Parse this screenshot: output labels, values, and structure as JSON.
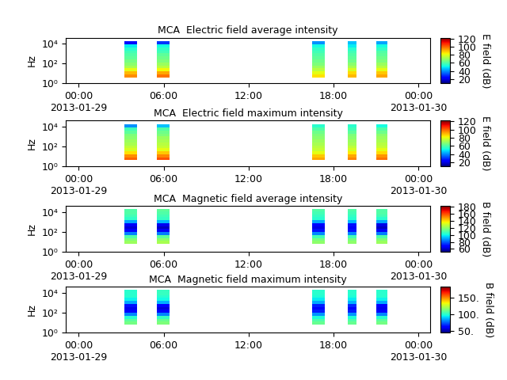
{
  "chart_data": [
    {
      "type": "heatmap",
      "title": "MCA  Electric field average intensity",
      "y_label": "Hz",
      "log": "y",
      "xlim": [
        -0.9,
        24.8
      ],
      "xticks": [
        {
          "value": 0,
          "label": "00:00\n2013-01-29"
        },
        {
          "value": 6,
          "label": "06:00"
        },
        {
          "value": 12,
          "label": "12:00"
        },
        {
          "value": 18,
          "label": "18:00"
        },
        {
          "value": 24,
          "label": "00:00\n2013-01-30"
        }
      ],
      "ylim": [
        1,
        40000
      ],
      "yticks": [
        {
          "value": 1,
          "label": "10⁰"
        },
        {
          "value": 100,
          "label": "10²"
        },
        {
          "value": 10000,
          "label": "10⁴"
        }
      ],
      "freq_edges": [
        4,
        8,
        16,
        32,
        64,
        128,
        256,
        512,
        1024,
        2048,
        4096,
        8192,
        16384
      ],
      "segments": [
        {
          "start": 3.2,
          "end": 4.1,
          "cells": [
            95,
            90,
            80,
            72,
            68,
            65,
            62,
            60,
            58,
            55,
            50,
            25
          ]
        },
        {
          "start": 5.5,
          "end": 6.4,
          "cells": [
            98,
            92,
            82,
            74,
            70,
            66,
            64,
            62,
            58,
            56,
            52,
            30
          ]
        },
        {
          "start": 16.5,
          "end": 17.4,
          "cells": [
            85,
            80,
            74,
            70,
            66,
            64,
            62,
            60,
            58,
            56,
            52,
            40
          ]
        },
        {
          "start": 19.0,
          "end": 19.6,
          "cells": [
            90,
            86,
            78,
            72,
            68,
            64,
            62,
            60,
            58,
            55,
            50,
            45
          ]
        },
        {
          "start": 21.0,
          "end": 21.8,
          "cells": [
            92,
            88,
            80,
            74,
            70,
            66,
            64,
            62,
            60,
            56,
            52,
            42
          ]
        }
      ],
      "colorbar": {
        "label": "E field (dB)",
        "range": [
          10,
          122
        ],
        "ticks": [
          20,
          40,
          60,
          80,
          100,
          120
        ]
      }
    },
    {
      "type": "heatmap",
      "title": "MCA  Electric field maximum intensity",
      "y_label": "Hz",
      "log": "y",
      "xlim": [
        -0.9,
        24.8
      ],
      "xticks": [
        {
          "value": 0,
          "label": "00:00\n2013-01-29"
        },
        {
          "value": 6,
          "label": "06:00"
        },
        {
          "value": 12,
          "label": "12:00"
        },
        {
          "value": 18,
          "label": "18:00"
        },
        {
          "value": 24,
          "label": "00:00\n2013-01-30"
        }
      ],
      "ylim": [
        1,
        40000
      ],
      "yticks": [
        {
          "value": 1,
          "label": "10⁰"
        },
        {
          "value": 100,
          "label": "10²"
        },
        {
          "value": 10000,
          "label": "10⁴"
        }
      ],
      "freq_edges": [
        4,
        8,
        16,
        32,
        64,
        128,
        256,
        512,
        1024,
        2048,
        4096,
        8192,
        16384
      ],
      "segments": [
        {
          "start": 3.2,
          "end": 4.1,
          "cells": [
            100,
            95,
            85,
            78,
            75,
            72,
            70,
            68,
            66,
            62,
            58,
            40
          ]
        },
        {
          "start": 5.5,
          "end": 6.4,
          "cells": [
            102,
            96,
            88,
            80,
            76,
            74,
            72,
            70,
            66,
            64,
            60,
            45
          ]
        },
        {
          "start": 16.5,
          "end": 17.4,
          "cells": [
            92,
            88,
            80,
            76,
            74,
            72,
            70,
            68,
            66,
            64,
            60,
            55
          ]
        },
        {
          "start": 19.0,
          "end": 19.6,
          "cells": [
            96,
            92,
            84,
            78,
            75,
            72,
            70,
            68,
            66,
            62,
            58,
            55
          ]
        },
        {
          "start": 21.0,
          "end": 21.8,
          "cells": [
            98,
            94,
            86,
            80,
            76,
            74,
            72,
            70,
            68,
            64,
            60,
            52
          ]
        }
      ],
      "colorbar": {
        "label": "E field (dB)",
        "range": [
          10,
          122
        ],
        "ticks": [
          20,
          40,
          60,
          80,
          100,
          120
        ]
      }
    },
    {
      "type": "heatmap",
      "title": "MCA  Magnetic field average intensity",
      "y_label": "Hz",
      "log": "y",
      "xlim": [
        -0.9,
        24.8
      ],
      "xticks": [
        {
          "value": 0,
          "label": "00:00\n2013-01-29"
        },
        {
          "value": 6,
          "label": "06:00"
        },
        {
          "value": 12,
          "label": "12:00"
        },
        {
          "value": 18,
          "label": "18:00"
        },
        {
          "value": 24,
          "label": "00:00\n2013-01-30"
        }
      ],
      "ylim": [
        1,
        40000
      ],
      "yticks": [
        {
          "value": 1,
          "label": "10⁰"
        },
        {
          "value": 100,
          "label": "10²"
        },
        {
          "value": 10000,
          "label": "10⁴"
        }
      ],
      "freq_edges": [
        6,
        12,
        24,
        48,
        96,
        192,
        384,
        768,
        1536,
        3072,
        6144,
        12288,
        20000
      ],
      "segments": [
        {
          "start": 3.2,
          "end": 4.1,
          "cells": [
            122,
            118,
            110,
            85,
            68,
            62,
            66,
            90,
            105,
            108,
            110,
            110
          ]
        },
        {
          "start": 5.5,
          "end": 6.4,
          "cells": [
            124,
            120,
            112,
            84,
            66,
            60,
            65,
            92,
            106,
            108,
            110,
            112
          ]
        },
        {
          "start": 16.5,
          "end": 17.4,
          "cells": [
            120,
            116,
            108,
            86,
            70,
            64,
            68,
            90,
            104,
            106,
            108,
            110
          ]
        },
        {
          "start": 19.0,
          "end": 19.6,
          "cells": [
            120,
            116,
            108,
            86,
            70,
            66,
            70,
            92,
            104,
            106,
            108,
            110
          ]
        },
        {
          "start": 21.0,
          "end": 21.8,
          "cells": [
            122,
            118,
            110,
            84,
            66,
            60,
            64,
            90,
            104,
            108,
            110,
            110
          ]
        }
      ],
      "colorbar": {
        "label": "B field (dB)",
        "range": [
          52,
          182
        ],
        "ticks": [
          60,
          80,
          100,
          120,
          140,
          160,
          180
        ]
      }
    },
    {
      "type": "heatmap",
      "title": "MCA  Magnetic field maximum intensity",
      "y_label": "Hz",
      "log": "y",
      "xlim": [
        -0.9,
        24.8
      ],
      "xticks": [
        {
          "value": 0,
          "label": "00:00\n2013-01-29"
        },
        {
          "value": 6,
          "label": "06:00"
        },
        {
          "value": 12,
          "label": "12:00"
        },
        {
          "value": 18,
          "label": "18:00"
        },
        {
          "value": 24,
          "label": "00:00\n2013-01-30"
        }
      ],
      "ylim": [
        1,
        40000
      ],
      "yticks": [
        {
          "value": 1,
          "label": "10⁰"
        },
        {
          "value": 100,
          "label": "10²"
        },
        {
          "value": 10000,
          "label": "10⁴"
        }
      ],
      "freq_edges": [
        6,
        12,
        24,
        48,
        96,
        192,
        384,
        768,
        1536,
        3072,
        6144,
        12288,
        20000
      ],
      "segments": [
        {
          "start": 3.2,
          "end": 4.1,
          "cells": [
            112,
            108,
            100,
            80,
            62,
            58,
            64,
            85,
            95,
            100,
            100,
            100
          ]
        },
        {
          "start": 5.5,
          "end": 6.4,
          "cells": [
            114,
            110,
            102,
            80,
            60,
            56,
            62,
            86,
            96,
            100,
            102,
            102
          ]
        },
        {
          "start": 16.5,
          "end": 17.4,
          "cells": [
            110,
            106,
            98,
            82,
            66,
            60,
            66,
            85,
            94,
            98,
            100,
            100
          ]
        },
        {
          "start": 19.0,
          "end": 19.6,
          "cells": [
            110,
            106,
            98,
            82,
            66,
            62,
            68,
            86,
            94,
            98,
            100,
            100
          ]
        },
        {
          "start": 21.0,
          "end": 21.8,
          "cells": [
            112,
            108,
            100,
            80,
            62,
            58,
            62,
            85,
            95,
            100,
            100,
            100
          ]
        }
      ],
      "colorbar": {
        "label": "B field (dB)",
        "range": [
          45,
          182
        ],
        "ticks": [
          {
            "value": 50,
            "label": "50."
          },
          {
            "value": 100,
            "label": "100."
          },
          {
            "value": 150,
            "label": "150."
          }
        ]
      }
    }
  ]
}
